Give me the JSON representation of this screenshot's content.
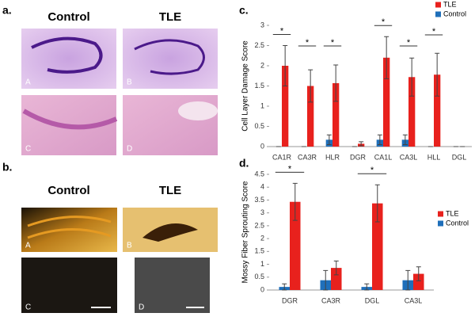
{
  "figure": {
    "panel_a": {
      "label": "a.",
      "col_left": "Control",
      "col_right": "TLE",
      "letters": [
        "A",
        "B",
        "C",
        "D"
      ]
    },
    "panel_b": {
      "label": "b.",
      "col_left": "Control",
      "col_right": "TLE",
      "letters": [
        "A",
        "B",
        "C",
        "D"
      ]
    }
  },
  "chart_data": [
    {
      "type": "bar",
      "panel_label": "c.",
      "y_label": "Cell Layer Damage Score",
      "categories": [
        "CA1R",
        "CA3R",
        "HLR",
        "DGR",
        "CA1L",
        "CA3L",
        "HLL",
        "DGL"
      ],
      "series": [
        {
          "name": "Control",
          "color": "#1f6fba",
          "values": [
            0,
            0,
            0.17,
            0,
            0.17,
            0.17,
            0,
            0
          ],
          "errors": [
            0,
            0,
            0.12,
            0,
            0.12,
            0.12,
            0,
            0
          ]
        },
        {
          "name": "TLE",
          "color": "#e8211d",
          "values": [
            2.0,
            1.5,
            1.57,
            0.07,
            2.2,
            1.72,
            1.78,
            0
          ],
          "errors": [
            0.5,
            0.4,
            0.45,
            0.05,
            0.52,
            0.47,
            0.53,
            0
          ]
        }
      ],
      "significance_labels": [
        "*",
        "*",
        "*",
        null,
        "*",
        "*",
        "*",
        null
      ],
      "ylim": [
        0,
        3
      ],
      "yticks": [
        0,
        0.5,
        1,
        1.5,
        2,
        2.5,
        3
      ],
      "legend": "top-right"
    },
    {
      "type": "bar",
      "panel_label": "d.",
      "y_label": "Mossy Fiber Sprouting Score",
      "categories": [
        "DGR",
        "CA3R",
        "DGL",
        "CA3L"
      ],
      "series": [
        {
          "name": "Control",
          "color": "#1f6fba",
          "values": [
            0.12,
            0.38,
            0.12,
            0.38
          ],
          "errors": [
            0.12,
            0.38,
            0.12,
            0.38
          ]
        },
        {
          "name": "TLE",
          "color": "#e8211d",
          "values": [
            3.43,
            0.86,
            3.37,
            0.63
          ],
          "errors": [
            0.72,
            0.27,
            0.72,
            0.27
          ]
        }
      ],
      "significance_labels": [
        "*",
        null,
        "*",
        null
      ],
      "ylim": [
        0,
        4.5
      ],
      "yticks": [
        0,
        0.5,
        1,
        1.5,
        2,
        2.5,
        3,
        3.5,
        4,
        4.5
      ],
      "legend": "right"
    }
  ]
}
